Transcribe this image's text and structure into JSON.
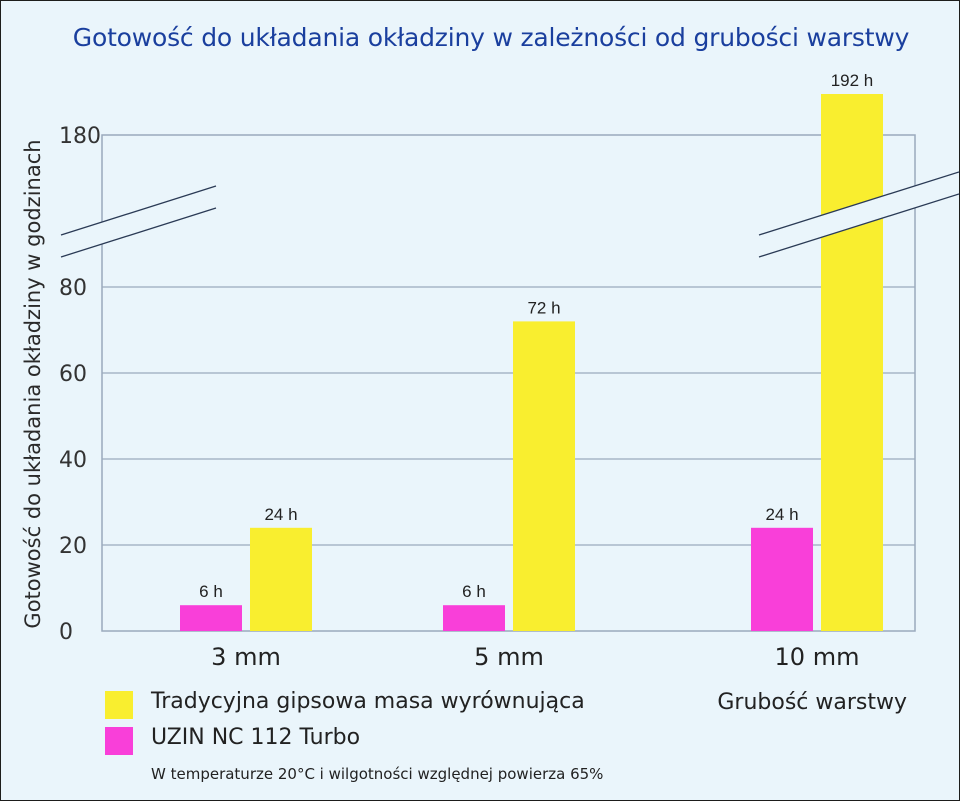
{
  "chart_data": {
    "type": "bar",
    "title": "Gotowość do układania okładziny w zależności od grubości warstwy",
    "ylabel": "Gotowość do układania okładziny w godzinach",
    "xlabel": "Grubość warstwy",
    "categories": [
      "3 mm",
      "5 mm",
      "10 mm"
    ],
    "series": [
      {
        "name": "UZIN NC 112 Turbo",
        "values": [
          6,
          6,
          24
        ],
        "labels": [
          "6 h",
          "6 h",
          "24 h"
        ],
        "color": "#f93fd9"
      },
      {
        "name": "Tradycyjna gipsowa masa wyrównująca",
        "values": [
          24,
          72,
          192
        ],
        "labels": [
          "24 h",
          "72 h",
          "192 h"
        ],
        "color": "#f9ee2f"
      }
    ],
    "yticks": [
      0,
      20,
      40,
      60,
      80,
      180
    ],
    "ylim": [
      0,
      180
    ],
    "axis_break": [
      80,
      180
    ],
    "grid": true,
    "legend_position": "bottom-left"
  },
  "legend": [
    {
      "label": "Tradycyjna gipsowa masa wyrównująca",
      "color": "#f9ee2f"
    },
    {
      "label": "UZIN NC 112 Turbo",
      "color": "#f93fd9"
    }
  ],
  "footnote": "W temperaturze 20°C i wilgotności względnej powierza 65%"
}
